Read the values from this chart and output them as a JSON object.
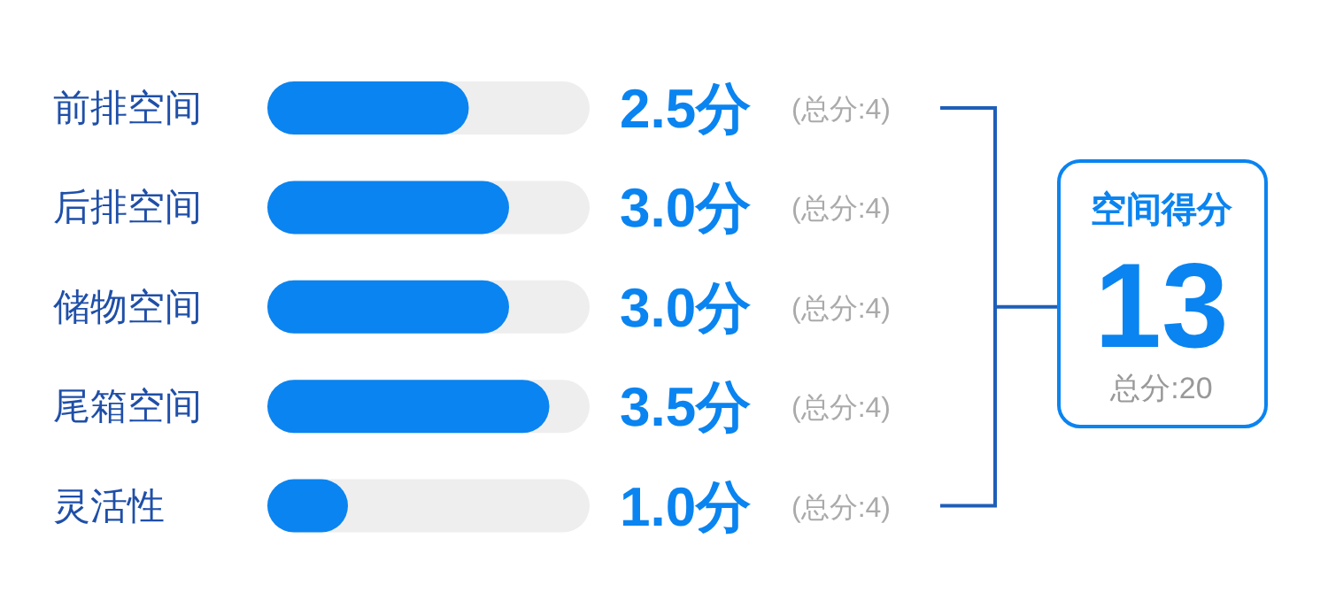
{
  "chart_data": {
    "type": "bar",
    "orientation": "horizontal",
    "categories": [
      "前排空间",
      "后排空间",
      "储物空间",
      "尾箱空间",
      "灵活性"
    ],
    "values": [
      2.5,
      3.0,
      3.0,
      3.5,
      1.0
    ],
    "value_labels": [
      "2.5分",
      "3.0分",
      "3.0分",
      "3.5分",
      "1.0分"
    ],
    "color": "#0a84f0",
    "xlim": [
      0,
      4
    ],
    "annotations": [
      "(总分:4)",
      "(总分:4)",
      "(总分:4)",
      "(总分:4)",
      "(总分:4)",
      "空间得分",
      "13",
      "总分:20"
    ]
  }
}
